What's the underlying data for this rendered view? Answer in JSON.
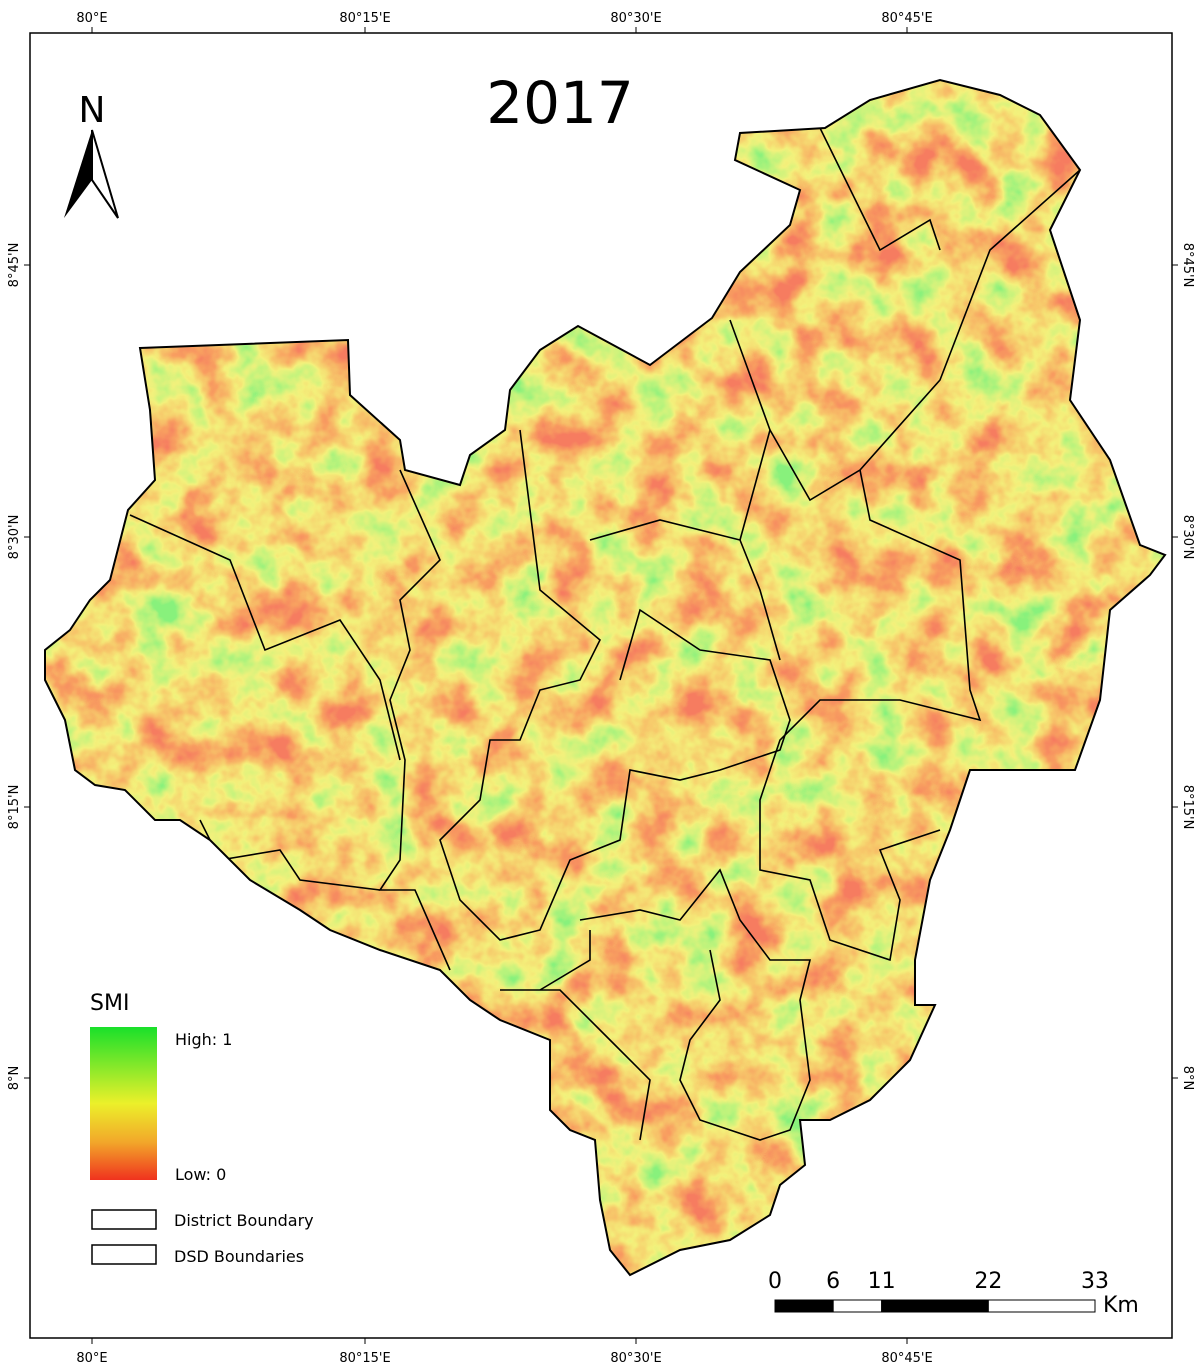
{
  "title": "2017",
  "north_arrow": "N",
  "graticule": {
    "top": [
      "80°E",
      "80°15'E",
      "80°30'E",
      "80°45'E"
    ],
    "bottom": [
      "80°E",
      "80°15'E",
      "80°30'E",
      "80°45'E"
    ],
    "left": [
      "8°45'N",
      "8°30'N",
      "8°15'N",
      "8°N"
    ],
    "right": [
      "8°45'N",
      "8°30'N",
      "8°15'N",
      "8°N"
    ]
  },
  "legend": {
    "title": "SMI",
    "high": "High: 1",
    "low": "Low: 0",
    "items": [
      "District Boundary",
      "DSD Boundaries"
    ]
  },
  "scale_bar": {
    "ticks": [
      0,
      6,
      11,
      22,
      33
    ],
    "unit": "Km"
  }
}
